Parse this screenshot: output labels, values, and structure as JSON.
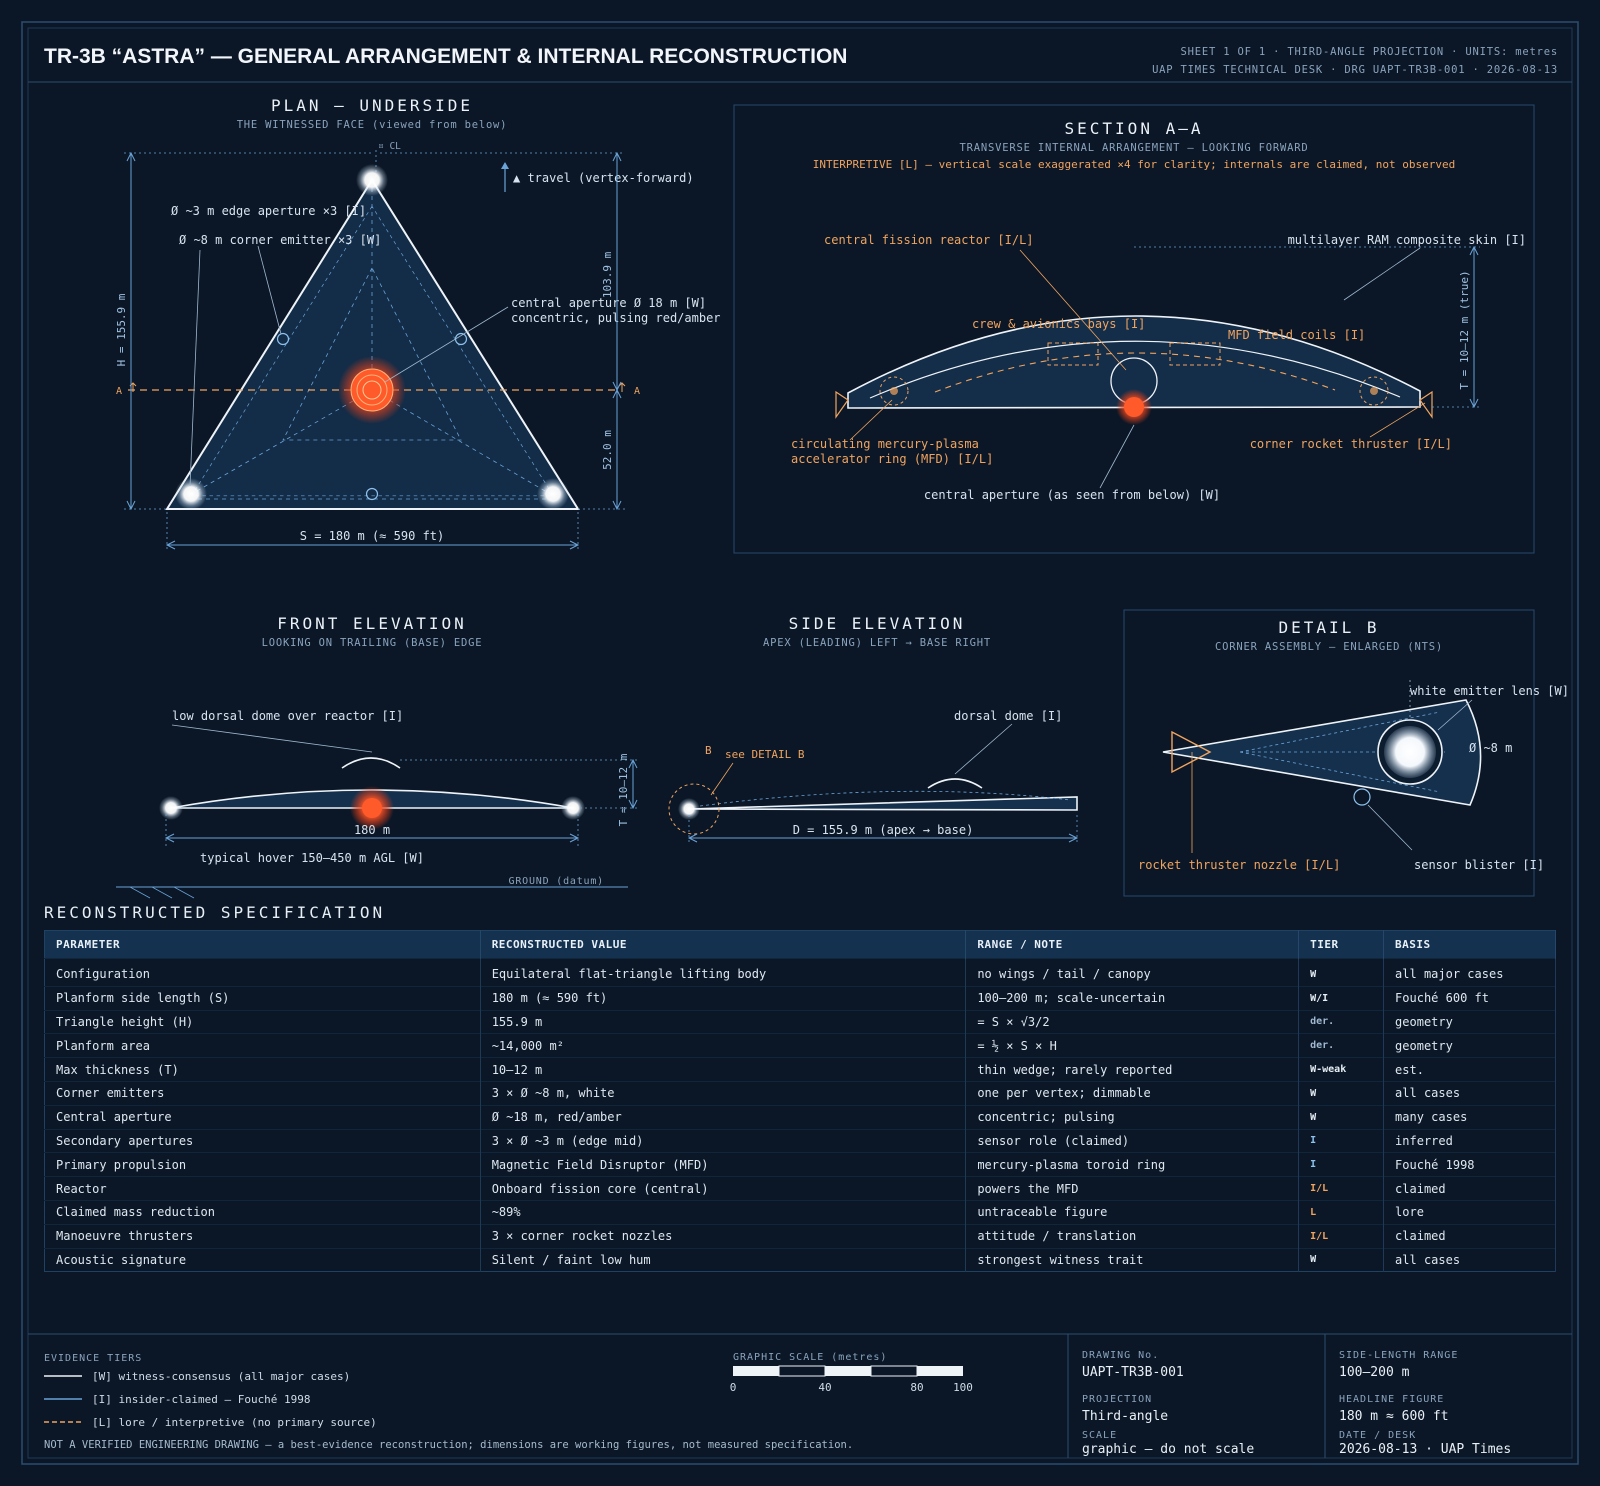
{
  "header": {
    "title": "TR-3B “ASTRA” — GENERAL ARRANGEMENT & INTERNAL RECONSTRUCTION",
    "meta_line1": "SHEET 1 OF 1 · THIRD-ANGLE PROJECTION · UNITS: metres",
    "meta_line2": "UAP TIMES TECHNICAL DESK · DRG UAPT-TR3B-001 · 2026-08-13"
  },
  "plan": {
    "title": "PLAN — UNDERSIDE",
    "subtitle": "THE WITNESSED FACE (viewed from below)",
    "cl": "¤ CL",
    "travel": "▲ travel (vertex-forward)",
    "edge_aperture": "Ø ~3 m edge aperture ×3 [I]",
    "corner_emitter": "Ø ~8 m corner emitter ×3 [W]",
    "central_aperture_1": "central aperture Ø 18 m [W]",
    "central_aperture_2": "concentric, pulsing red/amber",
    "h_dim": "H = 155.9 m",
    "upper_dim": "103.9 m",
    "lower_dim": "52.0 m",
    "side_dim": "S = 180 m (≈ 590 ft)",
    "section_left": "A",
    "section_right": "A"
  },
  "section": {
    "title": "SECTION A–A",
    "subtitle": "TRANSVERSE INTERNAL ARRANGEMENT — LOOKING FORWARD",
    "note": "INTERPRETIVE [L] — vertical scale exaggerated ×4 for clarity; internals are claimed, not observed",
    "reactor": "central fission reactor [I/L]",
    "skin": "multilayer RAM composite skin [I]",
    "crew": "crew & avionics bays [I]",
    "mfd_coils": "MFD field coils [I]",
    "ring_1": "circulating mercury-plasma",
    "ring_2": "accelerator ring (MFD) [I/L]",
    "thruster": "corner rocket thruster [I/L]",
    "aperture": "central aperture (as seen from below) [W]",
    "thickness": "T = 10–12 m (true)"
  },
  "front": {
    "title": "FRONT ELEVATION",
    "subtitle": "LOOKING ON TRAILING (BASE) EDGE",
    "dome": "low dorsal dome over reactor [I]",
    "span": "180 m",
    "thickness": "T ≈ 10–12 m",
    "hover": "typical hover 150–450 m AGL [W]",
    "ground": "GROUND (datum)"
  },
  "side": {
    "title": "SIDE ELEVATION",
    "subtitle": "APEX (LEADING) LEFT → BASE RIGHT",
    "dome": "dorsal dome [I]",
    "b_marker": "B",
    "see_detail": "see DETAIL B",
    "length": "D = 155.9 m (apex → base)"
  },
  "detail": {
    "title": "DETAIL B",
    "subtitle": "CORNER ASSEMBLY — ENLARGED (NTS)",
    "lens": "white emitter lens [W]",
    "diameter": "Ø ~8 m",
    "nozzle": "rocket thruster nozzle [I/L]",
    "sensor": "sensor blister [I]"
  },
  "spec": {
    "heading": "RECONSTRUCTED SPECIFICATION",
    "columns": [
      "PARAMETER",
      "RECONSTRUCTED VALUE",
      "RANGE / NOTE",
      "TIER",
      "BASIS"
    ],
    "rows": [
      {
        "param": "Configuration",
        "value": "Equilateral flat-triangle lifting body",
        "note": "no wings / tail / canopy",
        "tier": "W",
        "basis": "all major cases"
      },
      {
        "param": "Planform side length (S)",
        "value": "180 m (≈ 590 ft)",
        "note": "100–200 m; scale-uncertain",
        "tier": "W/I",
        "basis": "Fouché 600 ft"
      },
      {
        "param": "Triangle height (H)",
        "value": "155.9 m",
        "note": "= S × √3/2",
        "tier": "der.",
        "basis": "geometry"
      },
      {
        "param": "Planform area",
        "value": "~14,000 m²",
        "note": "= ½ × S × H",
        "tier": "der.",
        "basis": "geometry"
      },
      {
        "param": "Max thickness (T)",
        "value": "10–12 m",
        "note": "thin wedge; rarely reported",
        "tier": "W-weak",
        "basis": "est."
      },
      {
        "param": "Corner emitters",
        "value": "3 × Ø ~8 m, white",
        "note": "one per vertex; dimmable",
        "tier": "W",
        "basis": "all cases"
      },
      {
        "param": "Central aperture",
        "value": "Ø ~18 m, red/amber",
        "note": "concentric; pulsing",
        "tier": "W",
        "basis": "many cases"
      },
      {
        "param": "Secondary apertures",
        "value": "3 × Ø ~3 m (edge mid)",
        "note": "sensor role (claimed)",
        "tier": "I",
        "basis": "inferred"
      },
      {
        "param": "Primary propulsion",
        "value": "Magnetic Field Disruptor (MFD)",
        "note": "mercury-plasma toroid ring",
        "tier": "I",
        "basis": "Fouché 1998"
      },
      {
        "param": "Reactor",
        "value": "Onboard fission core (central)",
        "note": "powers the MFD",
        "tier": "I/L",
        "basis": "claimed"
      },
      {
        "param": "Claimed mass reduction",
        "value": "~89%",
        "note": "untraceable figure",
        "tier": "L",
        "basis": "lore"
      },
      {
        "param": "Manoeuvre thrusters",
        "value": "3 × corner rocket nozzles",
        "note": "attitude / translation",
        "tier": "I/L",
        "basis": "claimed"
      },
      {
        "param": "Acoustic signature",
        "value": "Silent / faint low hum",
        "note": "strongest witness trait",
        "tier": "W",
        "basis": "all cases"
      }
    ]
  },
  "footer": {
    "tiers_label": "EVIDENCE TIERS",
    "tier_w": "[W] witness-consensus (all major cases)",
    "tier_i": "[I] insider-claimed — Fouché 1998",
    "tier_l": "[L] lore / interpretive (no primary source)",
    "disclaimer": "NOT A VERIFIED ENGINEERING DRAWING — a best-evidence reconstruction; dimensions are working figures, not measured specification.",
    "scale_label": "GRAPHIC SCALE (metres)",
    "scale_ticks": [
      "0",
      "40",
      "80",
      "100"
    ],
    "drawing_no_label": "DRAWING No.",
    "drawing_no": "UAPT-TR3B-001",
    "projection_label": "PROJECTION",
    "projection": "Third-angle",
    "scale_field_label": "SCALE",
    "scale_field": "graphic — do not scale",
    "range_label": "SIDE-LENGTH RANGE",
    "range": "100–200 m",
    "headline_label": "HEADLINE FIGURE",
    "headline": "180 m ≈ 600 ft",
    "date_label": "DATE / DESK",
    "date": "2026-08-13 · UAP Times"
  },
  "colors": {
    "background": "#0b1726",
    "line": "#e8eef5",
    "dimension": "#6aa3d8",
    "interpretive": "#f0a460",
    "aperture": "#ff5a2a"
  }
}
